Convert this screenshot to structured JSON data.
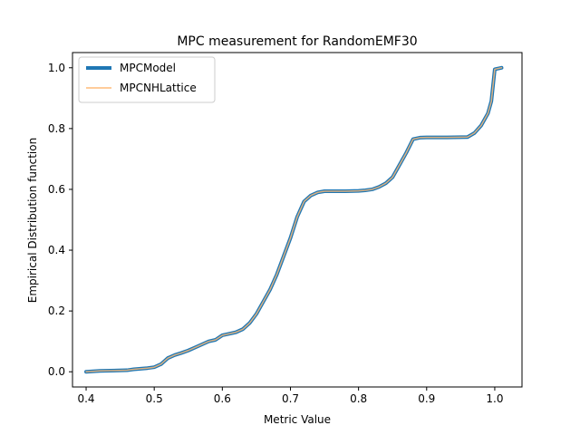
{
  "chart_data": {
    "type": "line",
    "title": "MPC measurement for RandomEMF30",
    "xlabel": "Metric Value",
    "ylabel": "Empirical Distribution function",
    "xlim": [
      0.38,
      1.04
    ],
    "ylim": [
      -0.05,
      1.05
    ],
    "xticks": [
      0.4,
      0.5,
      0.6,
      0.7,
      0.8,
      0.9,
      1.0
    ],
    "xtick_labels": [
      "0.4",
      "0.5",
      "0.6",
      "0.7",
      "0.8",
      "0.9",
      "1.0"
    ],
    "yticks": [
      0.0,
      0.2,
      0.4,
      0.6,
      0.8,
      1.0
    ],
    "ytick_labels": [
      "0.0",
      "0.2",
      "0.4",
      "0.6",
      "0.8",
      "1.0"
    ],
    "grid": false,
    "legend_position": "upper-left",
    "series": [
      {
        "name": "MPCModel",
        "color": "#1f77b4",
        "x": [
          0.4,
          0.42,
          0.46,
          0.47,
          0.48,
          0.49,
          0.5,
          0.51,
          0.52,
          0.53,
          0.54,
          0.55,
          0.56,
          0.57,
          0.58,
          0.59,
          0.6,
          0.61,
          0.62,
          0.63,
          0.64,
          0.65,
          0.66,
          0.67,
          0.68,
          0.69,
          0.7,
          0.71,
          0.72,
          0.73,
          0.74,
          0.75,
          0.78,
          0.8,
          0.81,
          0.82,
          0.83,
          0.84,
          0.85,
          0.86,
          0.87,
          0.88,
          0.89,
          0.9,
          0.93,
          0.96,
          0.97,
          0.98,
          0.99,
          0.995,
          1.0,
          1.01
        ],
        "y": [
          0.0,
          0.003,
          0.005,
          0.008,
          0.01,
          0.012,
          0.015,
          0.025,
          0.045,
          0.055,
          0.062,
          0.07,
          0.08,
          0.09,
          0.1,
          0.105,
          0.12,
          0.125,
          0.13,
          0.14,
          0.16,
          0.19,
          0.23,
          0.27,
          0.32,
          0.38,
          0.44,
          0.51,
          0.56,
          0.58,
          0.59,
          0.594,
          0.594,
          0.595,
          0.597,
          0.6,
          0.608,
          0.62,
          0.64,
          0.68,
          0.72,
          0.765,
          0.77,
          0.771,
          0.771,
          0.772,
          0.785,
          0.81,
          0.85,
          0.89,
          0.995,
          1.0
        ]
      },
      {
        "name": "MPCNHLattice",
        "color": "#ffbb78",
        "x": [
          0.4,
          0.42,
          0.46,
          0.47,
          0.48,
          0.49,
          0.5,
          0.51,
          0.52,
          0.53,
          0.54,
          0.55,
          0.56,
          0.57,
          0.58,
          0.59,
          0.6,
          0.61,
          0.62,
          0.63,
          0.64,
          0.65,
          0.66,
          0.67,
          0.68,
          0.69,
          0.7,
          0.71,
          0.72,
          0.73,
          0.74,
          0.75,
          0.78,
          0.8,
          0.81,
          0.82,
          0.83,
          0.84,
          0.85,
          0.86,
          0.87,
          0.88,
          0.89,
          0.9,
          0.93,
          0.96,
          0.97,
          0.98,
          0.99,
          0.995,
          1.0,
          1.01
        ],
        "y": [
          0.0,
          0.003,
          0.005,
          0.008,
          0.01,
          0.012,
          0.015,
          0.025,
          0.045,
          0.055,
          0.062,
          0.07,
          0.08,
          0.09,
          0.1,
          0.105,
          0.12,
          0.125,
          0.13,
          0.14,
          0.16,
          0.19,
          0.23,
          0.27,
          0.32,
          0.38,
          0.44,
          0.51,
          0.56,
          0.58,
          0.59,
          0.594,
          0.594,
          0.595,
          0.597,
          0.6,
          0.608,
          0.62,
          0.64,
          0.68,
          0.72,
          0.765,
          0.77,
          0.771,
          0.771,
          0.772,
          0.785,
          0.81,
          0.85,
          0.89,
          0.995,
          1.0
        ]
      }
    ]
  }
}
